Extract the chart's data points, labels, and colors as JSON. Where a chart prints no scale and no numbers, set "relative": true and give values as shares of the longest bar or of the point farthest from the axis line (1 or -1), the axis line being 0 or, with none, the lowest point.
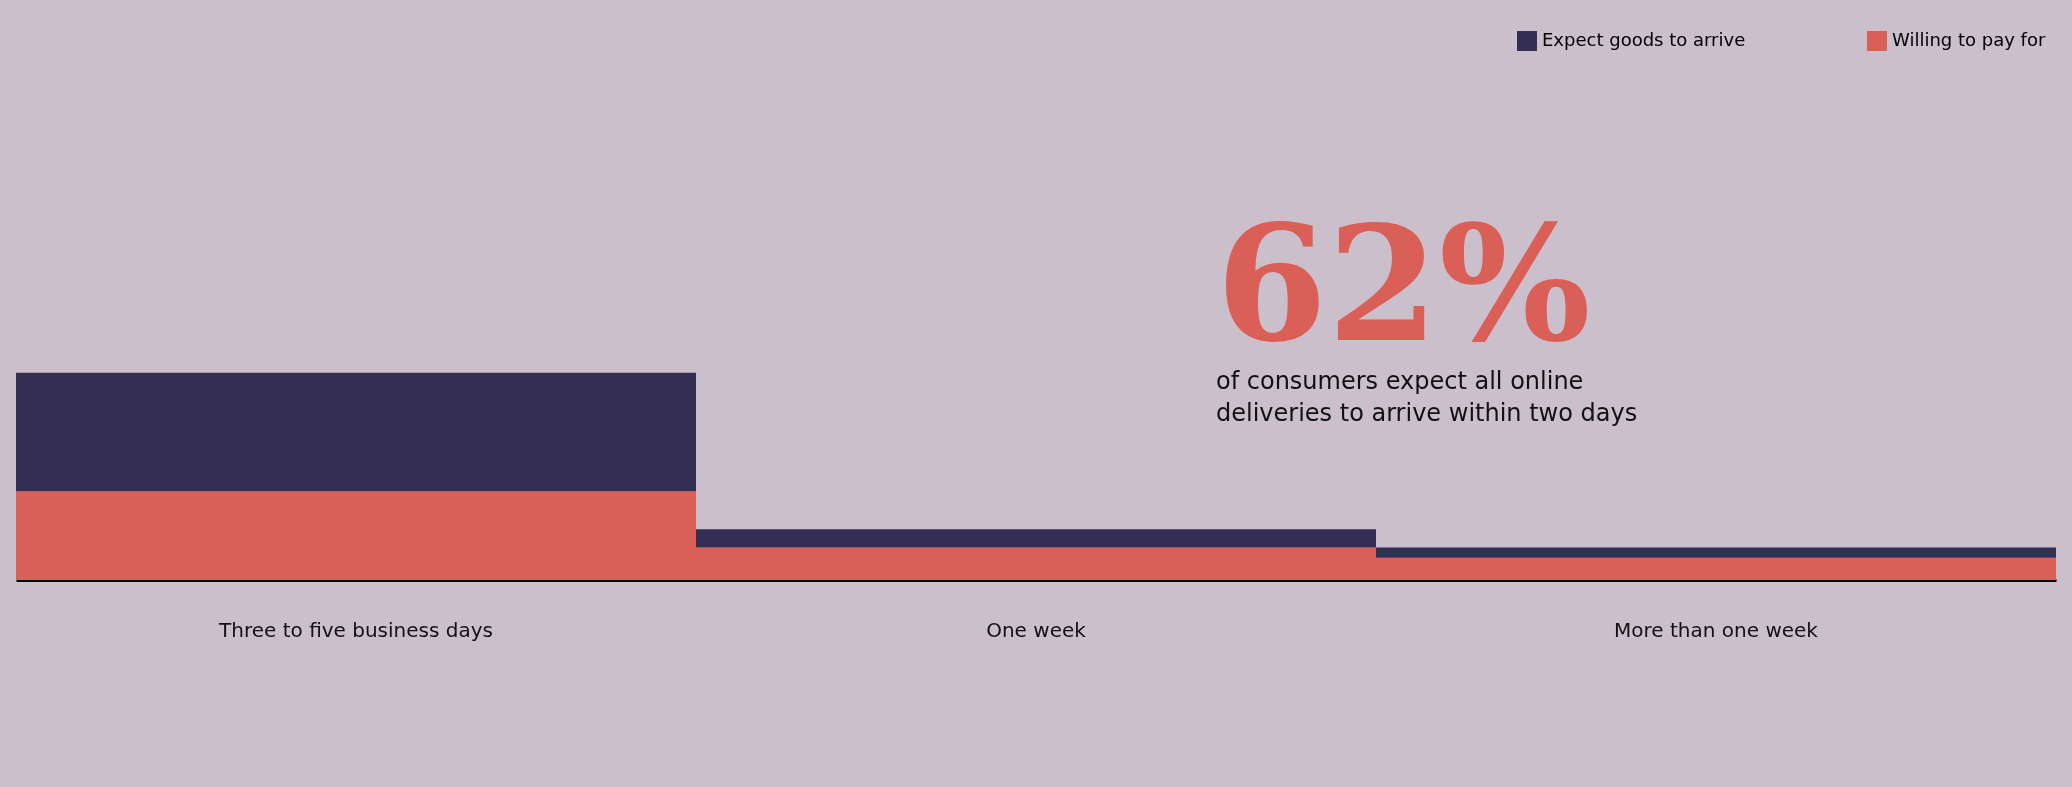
{
  "chart_data": {
    "type": "bar",
    "relative": true,
    "stacked": true,
    "categories": [
      "Three to five business days",
      "One week",
      "More than one week"
    ],
    "series": [
      {
        "name": "Willing to pay for",
        "color": "#d95f57",
        "values": [
          0.428,
          0.157,
          0.107
        ]
      },
      {
        "name": "Expect goods to arrive",
        "color": "#332e52",
        "values": [
          0.572,
          0.088,
          0.05
        ]
      }
    ],
    "legend": "top right",
    "annotations": [
      "62%",
      "of consumers expect all online deliveries to arrive within two days"
    ]
  }
}
